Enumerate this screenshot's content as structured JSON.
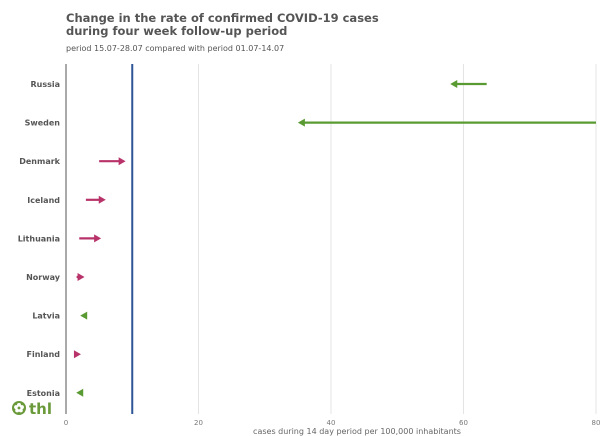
{
  "chart_data": {
    "type": "arrow",
    "title_lines": [
      "Change in the rate of confirmed COVID-19 cases",
      "during four week follow-up period"
    ],
    "subtitle": "period 15.07-28.07 compared with period 01.07-14.07",
    "xlabel": "cases during 14 day period per 100,000 inhabitants",
    "xlim": [
      0,
      80
    ],
    "xticks": [
      0,
      20,
      40,
      60,
      80
    ],
    "reference_line": 10,
    "categories": [
      "Russia",
      "Sweden",
      "Denmark",
      "Iceland",
      "Lithuania",
      "Norway",
      "Latvia",
      "Finland",
      "Estonia"
    ],
    "from": [
      63.5,
      80,
      5,
      3,
      2,
      1.6,
      3.2,
      1.2,
      2.6
    ],
    "to": [
      58,
      35,
      9,
      6,
      5.3,
      2.8,
      2.3,
      2,
      1.7
    ],
    "colors": {
      "increase": "#b8336a",
      "decrease": "#5a9a32",
      "reference": "#2d5597",
      "grid": "#e4e4e4",
      "axis": "#555555"
    }
  },
  "logo": {
    "text": "thl",
    "icon": "flower-icon"
  }
}
